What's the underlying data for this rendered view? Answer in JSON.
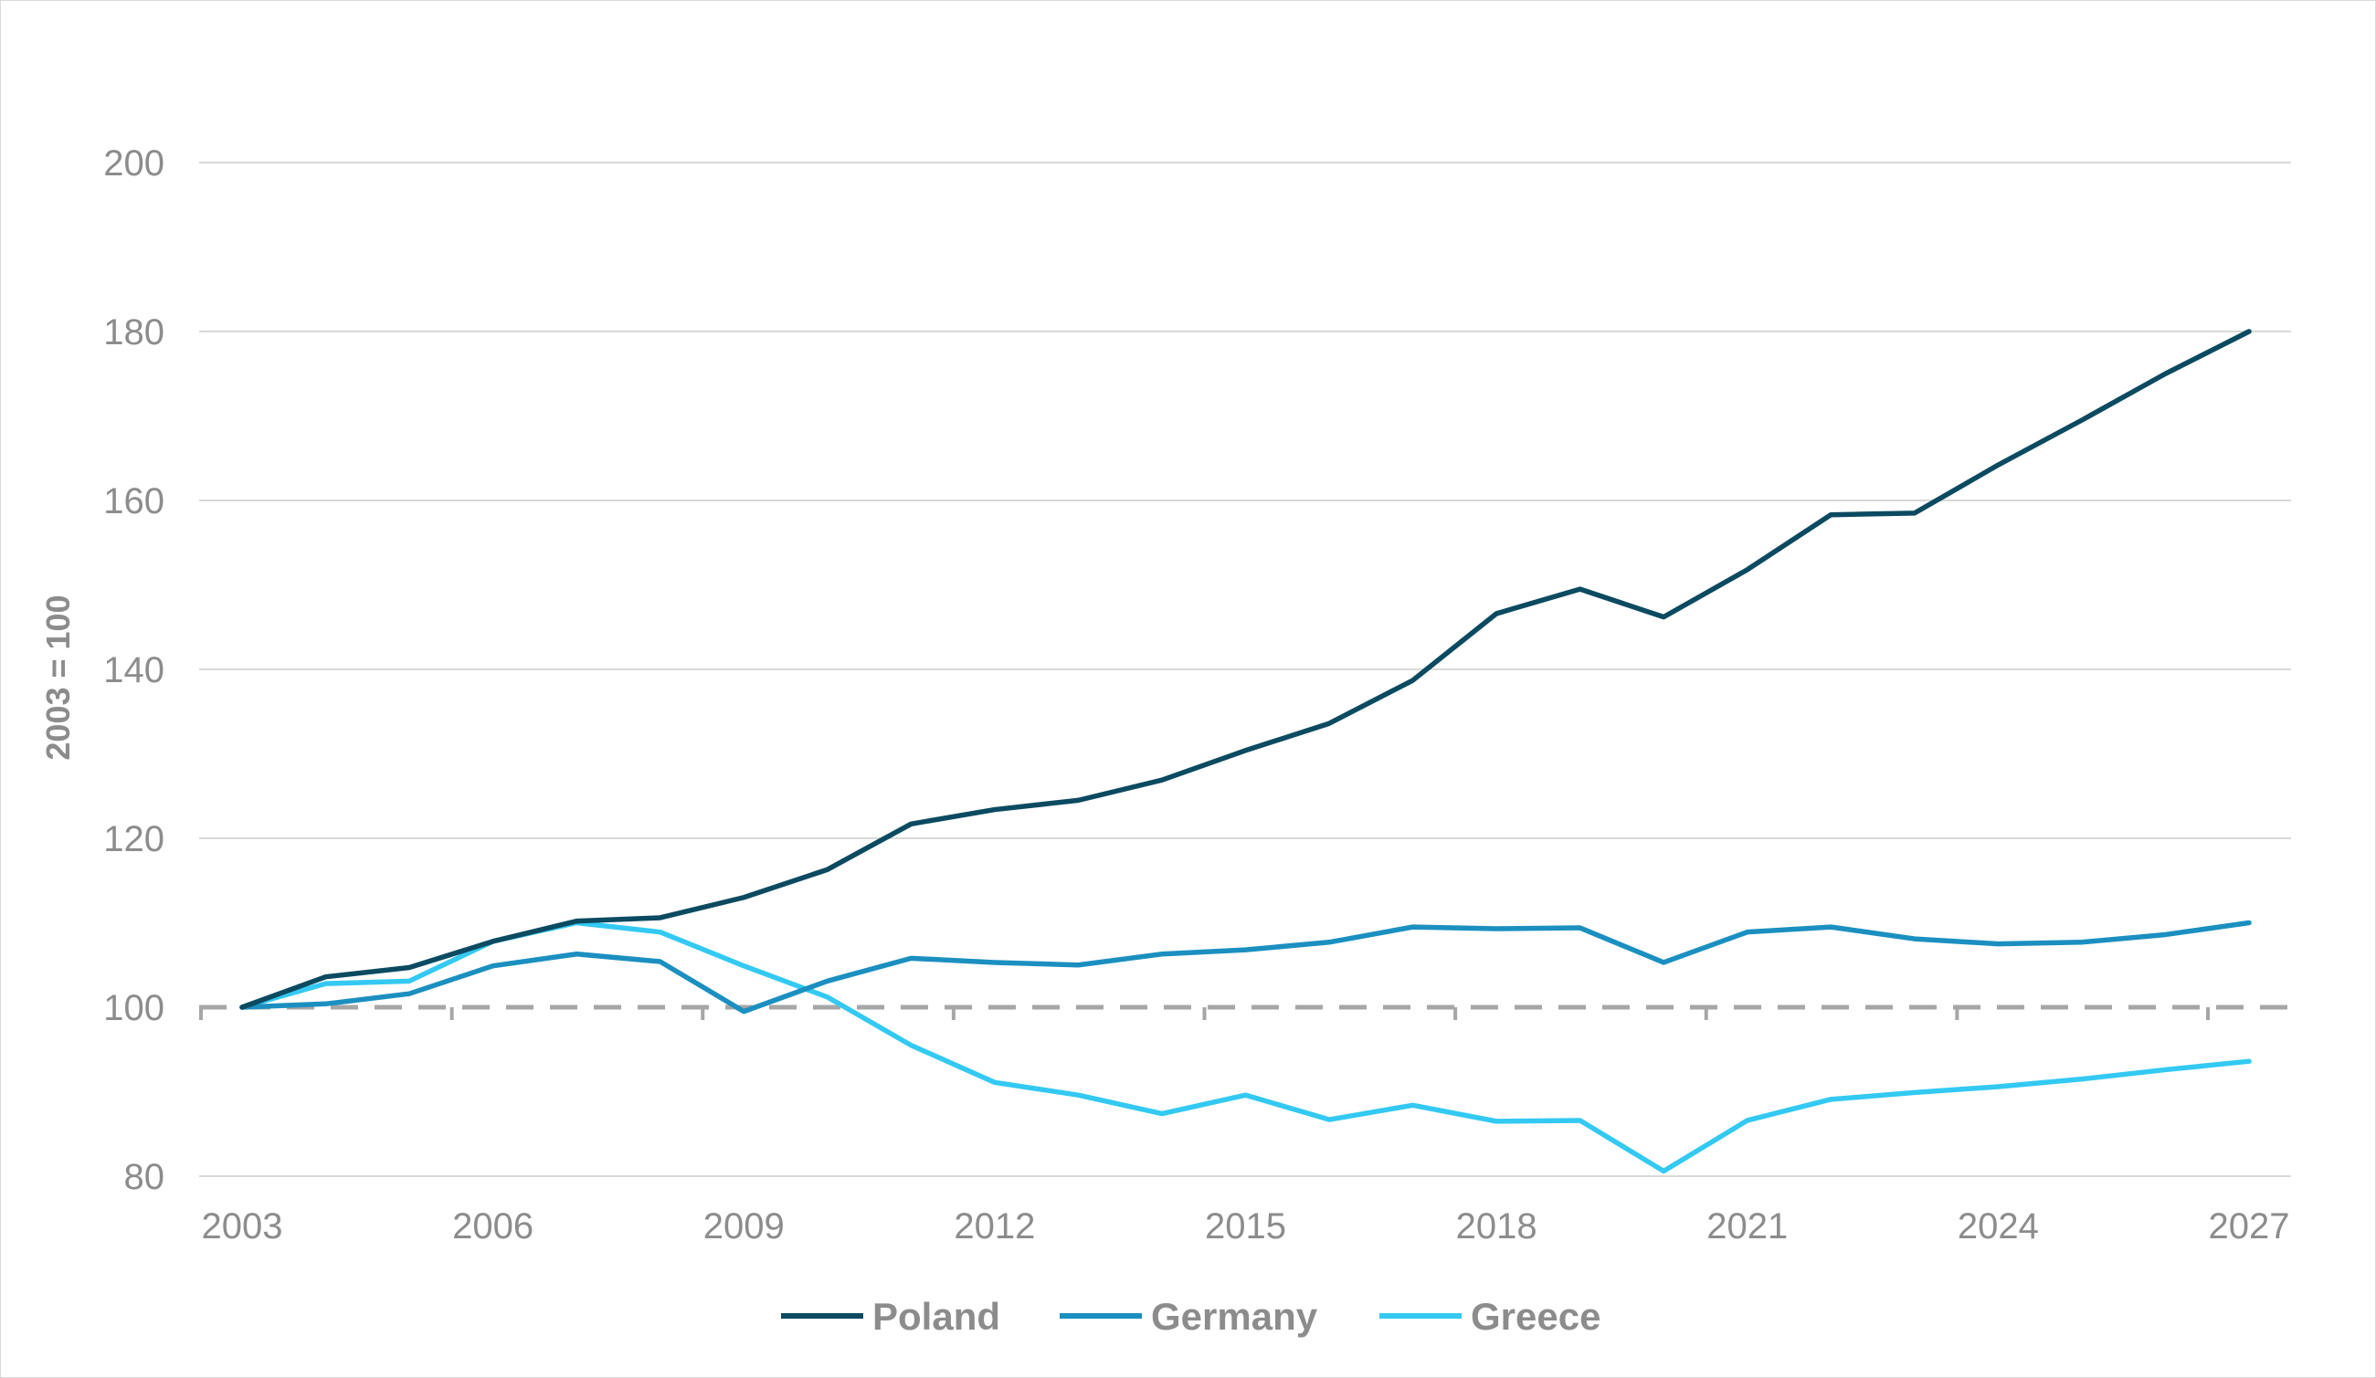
{
  "chart_data": {
    "type": "line",
    "title": "",
    "xlabel": "",
    "ylabel": "2003 = 100",
    "x": [
      2003,
      2004,
      2005,
      2006,
      2007,
      2008,
      2009,
      2010,
      2011,
      2012,
      2013,
      2014,
      2015,
      2016,
      2017,
      2018,
      2019,
      2020,
      2021,
      2022,
      2023,
      2024,
      2025,
      2026,
      2027
    ],
    "x_ticks": [
      "2003",
      "2006",
      "2009",
      "2012",
      "2015",
      "2018",
      "2021",
      "2024",
      "2027"
    ],
    "y_ticks": [
      "80",
      "100",
      "120",
      "140",
      "160",
      "180",
      "200"
    ],
    "ylim": [
      80,
      200
    ],
    "reference_line": 100,
    "grid": "horizontal",
    "legend_position": "bottom",
    "series": [
      {
        "name": "Poland",
        "color": "#0b4a60",
        "values": [
          100,
          103.6,
          104.7,
          107.8,
          110.2,
          110.6,
          113.0,
          116.3,
          121.7,
          123.4,
          124.5,
          126.9,
          130.4,
          133.6,
          138.7,
          146.6,
          149.5,
          146.2,
          151.8,
          158.3,
          158.5,
          164.2,
          169.5,
          175.0,
          180.0
        ]
      },
      {
        "name": "Germany",
        "color": "#1b8fc0",
        "values": [
          100,
          100.4,
          101.6,
          104.9,
          106.3,
          105.4,
          99.5,
          103.1,
          105.8,
          105.3,
          105.0,
          106.3,
          106.8,
          107.7,
          109.5,
          109.3,
          109.4,
          105.3,
          108.9,
          109.5,
          108.1,
          107.5,
          107.7,
          108.6,
          110.0
        ]
      },
      {
        "name": "Greece",
        "color": "#33c9f2",
        "values": [
          100,
          102.8,
          103.1,
          107.8,
          110.0,
          108.9,
          104.9,
          101.2,
          95.5,
          91.1,
          89.6,
          87.4,
          89.6,
          86.7,
          88.4,
          86.5,
          86.6,
          80.6,
          86.6,
          89.1,
          89.9,
          90.6,
          91.5,
          92.6,
          93.6
        ]
      }
    ]
  }
}
